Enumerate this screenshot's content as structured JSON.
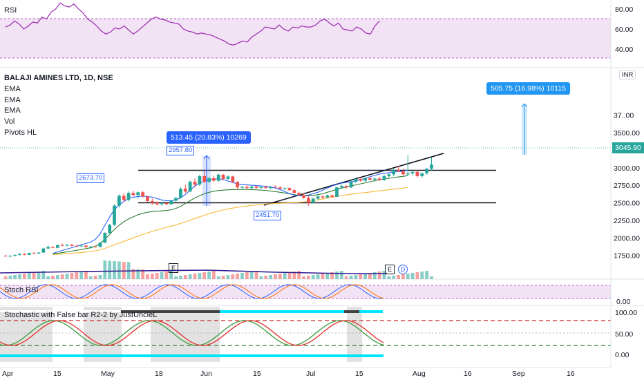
{
  "symbol_title": "BALAJI AMINES LTD, 1D, NSE",
  "indicators": [
    "EMA",
    "EMA",
    "EMA",
    "Vol",
    "Pivots HL"
  ],
  "currency_badge": "INR",
  "last_price": "3045.90",
  "colors": {
    "up": "#26a69a",
    "down": "#ef5350",
    "accent": "#2962ff",
    "ema_fast": "#2962ff",
    "ema_mid": "#2e7d32",
    "ema_slow": "#f7b731",
    "rsi_line": "#9c27b0",
    "rsi_band": "#e1bee7",
    "cyan": "#00e5ff"
  },
  "panes": {
    "rsi": {
      "label": "RSI",
      "ticks": [
        "80.00",
        "60.00",
        "40.00"
      ]
    },
    "stoch_rsi": {
      "label": "Stoch RSI",
      "ticks": [
        "0.00"
      ]
    },
    "stoch_fb": {
      "label": "Stochastic with False bar R2-2 by JustUncleL",
      "ticks": [
        "100.00",
        "50.00",
        "0.00"
      ]
    }
  },
  "callouts": {
    "measure1": "513.45 (20.83%) 10269",
    "measure2": "505.75 (16.98%) 10115"
  },
  "pivots": {
    "p1": "2673.70",
    "p2": "2957.80",
    "p3": "2451.70"
  },
  "badges": {
    "e1": "E",
    "e2": "E",
    "d": "D"
  },
  "chart_data": {
    "type": "candlestick",
    "title": "BALAJI AMINES LTD, 1D, NSE",
    "price_axis": {
      "ticks": [
        1750,
        2000,
        2250,
        2500,
        2750,
        3000,
        3250,
        3500,
        3750
      ],
      "tick_labels": [
        "1750.00",
        "2000.00",
        "2250.00",
        "2500.00",
        "2750.00",
        "3000.00",
        "3250.00",
        "3500.00",
        "37..00"
      ],
      "ylim": [
        1700,
        3780
      ]
    },
    "time_axis": {
      "labels": [
        "Apr",
        "15",
        "May",
        "18",
        "Jun",
        "15",
        "Jul",
        "15",
        "Aug",
        "16",
        "Sep",
        "16"
      ]
    },
    "last_close": 3045.9,
    "candles": [
      {
        "o": 1745,
        "h": 1760,
        "l": 1728,
        "c": 1738
      },
      {
        "o": 1738,
        "h": 1752,
        "l": 1725,
        "c": 1744
      },
      {
        "o": 1744,
        "h": 1765,
        "l": 1735,
        "c": 1756
      },
      {
        "o": 1756,
        "h": 1780,
        "l": 1748,
        "c": 1770
      },
      {
        "o": 1770,
        "h": 1778,
        "l": 1750,
        "c": 1757
      },
      {
        "o": 1757,
        "h": 1790,
        "l": 1752,
        "c": 1785
      },
      {
        "o": 1785,
        "h": 1800,
        "l": 1770,
        "c": 1778
      },
      {
        "o": 1778,
        "h": 1795,
        "l": 1768,
        "c": 1790
      },
      {
        "o": 1790,
        "h": 1860,
        "l": 1785,
        "c": 1848
      },
      {
        "o": 1848,
        "h": 1890,
        "l": 1840,
        "c": 1870
      },
      {
        "o": 1870,
        "h": 1880,
        "l": 1850,
        "c": 1858
      },
      {
        "o": 1858,
        "h": 1905,
        "l": 1850,
        "c": 1897
      },
      {
        "o": 1897,
        "h": 1918,
        "l": 1880,
        "c": 1890
      },
      {
        "o": 1890,
        "h": 1912,
        "l": 1876,
        "c": 1902
      },
      {
        "o": 1902,
        "h": 1910,
        "l": 1880,
        "c": 1885
      },
      {
        "o": 1885,
        "h": 1900,
        "l": 1870,
        "c": 1880
      },
      {
        "o": 1880,
        "h": 1895,
        "l": 1865,
        "c": 1890
      },
      {
        "o": 1890,
        "h": 1895,
        "l": 1860,
        "c": 1868
      },
      {
        "o": 1868,
        "h": 1885,
        "l": 1855,
        "c": 1875
      },
      {
        "o": 1875,
        "h": 1888,
        "l": 1862,
        "c": 1870
      },
      {
        "o": 1870,
        "h": 1940,
        "l": 1865,
        "c": 1930
      },
      {
        "o": 1930,
        "h": 2080,
        "l": 1925,
        "c": 2070
      },
      {
        "o": 2070,
        "h": 2200,
        "l": 2050,
        "c": 2185
      },
      {
        "o": 2185,
        "h": 2480,
        "l": 2170,
        "c": 2460
      },
      {
        "o": 2460,
        "h": 2620,
        "l": 2430,
        "c": 2600
      },
      {
        "o": 2600,
        "h": 2640,
        "l": 2510,
        "c": 2540
      },
      {
        "o": 2540,
        "h": 2660,
        "l": 2520,
        "c": 2640
      },
      {
        "o": 2640,
        "h": 2674,
        "l": 2590,
        "c": 2610
      },
      {
        "o": 2610,
        "h": 2660,
        "l": 2560,
        "c": 2650
      },
      {
        "o": 2650,
        "h": 2670,
        "l": 2570,
        "c": 2590
      },
      {
        "o": 2590,
        "h": 2600,
        "l": 2510,
        "c": 2525
      },
      {
        "o": 2525,
        "h": 2560,
        "l": 2470,
        "c": 2500
      },
      {
        "o": 2500,
        "h": 2520,
        "l": 2460,
        "c": 2480
      },
      {
        "o": 2480,
        "h": 2510,
        "l": 2460,
        "c": 2495
      },
      {
        "o": 2495,
        "h": 2520,
        "l": 2470,
        "c": 2478
      },
      {
        "o": 2478,
        "h": 2540,
        "l": 2470,
        "c": 2530
      },
      {
        "o": 2530,
        "h": 2580,
        "l": 2515,
        "c": 2570
      },
      {
        "o": 2570,
        "h": 2720,
        "l": 2560,
        "c": 2700
      },
      {
        "o": 2700,
        "h": 2760,
        "l": 2640,
        "c": 2660
      },
      {
        "o": 2660,
        "h": 2820,
        "l": 2650,
        "c": 2800
      },
      {
        "o": 2800,
        "h": 2850,
        "l": 2720,
        "c": 2760
      },
      {
        "o": 2760,
        "h": 2900,
        "l": 2740,
        "c": 2880
      },
      {
        "o": 2880,
        "h": 2958,
        "l": 2780,
        "c": 2800
      },
      {
        "o": 2800,
        "h": 2870,
        "l": 2780,
        "c": 2850
      },
      {
        "o": 2850,
        "h": 2890,
        "l": 2800,
        "c": 2815
      },
      {
        "o": 2815,
        "h": 2920,
        "l": 2800,
        "c": 2900
      },
      {
        "o": 2900,
        "h": 2910,
        "l": 2820,
        "c": 2840
      },
      {
        "o": 2840,
        "h": 2890,
        "l": 2825,
        "c": 2875
      },
      {
        "o": 2875,
        "h": 2885,
        "l": 2780,
        "c": 2795
      },
      {
        "o": 2795,
        "h": 2810,
        "l": 2700,
        "c": 2720
      },
      {
        "o": 2720,
        "h": 2740,
        "l": 2690,
        "c": 2725
      },
      {
        "o": 2725,
        "h": 2760,
        "l": 2700,
        "c": 2710
      },
      {
        "o": 2710,
        "h": 2740,
        "l": 2695,
        "c": 2730
      },
      {
        "o": 2730,
        "h": 2750,
        "l": 2705,
        "c": 2712
      },
      {
        "o": 2712,
        "h": 2735,
        "l": 2700,
        "c": 2725
      },
      {
        "o": 2725,
        "h": 2745,
        "l": 2705,
        "c": 2708
      },
      {
        "o": 2708,
        "h": 2740,
        "l": 2700,
        "c": 2728
      },
      {
        "o": 2728,
        "h": 2750,
        "l": 2715,
        "c": 2720
      },
      {
        "o": 2720,
        "h": 2740,
        "l": 2690,
        "c": 2700
      },
      {
        "o": 2700,
        "h": 2720,
        "l": 2680,
        "c": 2710
      },
      {
        "o": 2710,
        "h": 2725,
        "l": 2670,
        "c": 2680
      },
      {
        "o": 2680,
        "h": 2700,
        "l": 2630,
        "c": 2640
      },
      {
        "o": 2640,
        "h": 2660,
        "l": 2600,
        "c": 2610
      },
      {
        "o": 2610,
        "h": 2640,
        "l": 2560,
        "c": 2570
      },
      {
        "o": 2570,
        "h": 2600,
        "l": 2452,
        "c": 2500
      },
      {
        "o": 2500,
        "h": 2570,
        "l": 2490,
        "c": 2560
      },
      {
        "o": 2560,
        "h": 2610,
        "l": 2540,
        "c": 2590
      },
      {
        "o": 2590,
        "h": 2610,
        "l": 2560,
        "c": 2575
      },
      {
        "o": 2575,
        "h": 2620,
        "l": 2560,
        "c": 2605
      },
      {
        "o": 2605,
        "h": 2620,
        "l": 2570,
        "c": 2585
      },
      {
        "o": 2585,
        "h": 2730,
        "l": 2580,
        "c": 2720
      },
      {
        "o": 2720,
        "h": 2760,
        "l": 2700,
        "c": 2740
      },
      {
        "o": 2740,
        "h": 2750,
        "l": 2700,
        "c": 2720
      },
      {
        "o": 2720,
        "h": 2820,
        "l": 2710,
        "c": 2800
      },
      {
        "o": 2800,
        "h": 2860,
        "l": 2780,
        "c": 2840
      },
      {
        "o": 2840,
        "h": 2860,
        "l": 2800,
        "c": 2815
      },
      {
        "o": 2815,
        "h": 2860,
        "l": 2800,
        "c": 2850
      },
      {
        "o": 2850,
        "h": 2870,
        "l": 2820,
        "c": 2830
      },
      {
        "o": 2830,
        "h": 2860,
        "l": 2800,
        "c": 2845
      },
      {
        "o": 2845,
        "h": 2870,
        "l": 2810,
        "c": 2825
      },
      {
        "o": 2825,
        "h": 2900,
        "l": 2810,
        "c": 2880
      },
      {
        "o": 2880,
        "h": 2920,
        "l": 2860,
        "c": 2905
      },
      {
        "o": 2905,
        "h": 2990,
        "l": 2880,
        "c": 2970
      },
      {
        "o": 2970,
        "h": 3020,
        "l": 2940,
        "c": 2950
      },
      {
        "o": 2950,
        "h": 2985,
        "l": 2890,
        "c": 2905
      },
      {
        "o": 2905,
        "h": 3180,
        "l": 2880,
        "c": 2920
      },
      {
        "o": 2920,
        "h": 2960,
        "l": 2890,
        "c": 2940
      },
      {
        "o": 2940,
        "h": 2960,
        "l": 2860,
        "c": 2880
      },
      {
        "o": 2880,
        "h": 2930,
        "l": 2860,
        "c": 2920
      },
      {
        "o": 2920,
        "h": 3000,
        "l": 2900,
        "c": 2985
      },
      {
        "o": 2985,
        "h": 3150,
        "l": 2960,
        "c": 3046
      }
    ],
    "ema_fast": [
      1780,
      1800,
      1820,
      1840,
      1860,
      1880,
      1900,
      1920,
      1940,
      1980,
      2060,
      2180,
      2300,
      2400,
      2470,
      2520,
      2560,
      2580,
      2590,
      2595,
      2590,
      2580,
      2560,
      2540,
      2530,
      2530,
      2540,
      2570,
      2620,
      2680,
      2740,
      2780,
      2810,
      2830,
      2840,
      2840,
      2830,
      2810,
      2790,
      2770,
      2760,
      2755,
      2750,
      2745,
      2740,
      2735,
      2725,
      2710,
      2690,
      2660,
      2630,
      2610,
      2600,
      2600,
      2610,
      2630,
      2650,
      2680,
      2710,
      2740,
      2760,
      2780,
      2790,
      2800,
      2810,
      2830,
      2850,
      2870,
      2890,
      2910,
      2920,
      2930,
      2940,
      2945,
      2950,
      2965
    ],
    "ema_mid": [
      1770,
      1780,
      1790,
      1800,
      1810,
      1822,
      1834,
      1846,
      1858,
      1880,
      1920,
      1980,
      2050,
      2120,
      2180,
      2230,
      2270,
      2300,
      2330,
      2350,
      2365,
      2375,
      2380,
      2385,
      2390,
      2400,
      2420,
      2450,
      2490,
      2530,
      2570,
      2600,
      2630,
      2650,
      2665,
      2675,
      2680,
      2685,
      2688,
      2690,
      2690,
      2690,
      2688,
      2685,
      2680,
      2675,
      2668,
      2660,
      2650,
      2640,
      2628,
      2615,
      2605,
      2600,
      2600,
      2605,
      2615,
      2630,
      2650,
      2670,
      2690,
      2710,
      2725,
      2740,
      2755,
      2770,
      2785,
      2800,
      2815,
      2828,
      2840,
      2850,
      2860,
      2868,
      2876,
      2888
    ],
    "ema_slow": [
      1760,
      1765,
      1770,
      1775,
      1780,
      1786,
      1792,
      1798,
      1805,
      1815,
      1830,
      1850,
      1875,
      1900,
      1925,
      1950,
      1975,
      2000,
      2025,
      2048,
      2070,
      2092,
      2112,
      2132,
      2150,
      2168,
      2185,
      2205,
      2228,
      2252,
      2276,
      2300,
      2322,
      2344,
      2364,
      2382,
      2398,
      2412,
      2424,
      2436,
      2446,
      2455,
      2463,
      2470,
      2476,
      2482,
      2486,
      2490,
      2493,
      2496,
      2499,
      2502,
      2506,
      2512,
      2520,
      2530,
      2542,
      2555,
      2568,
      2580,
      2592,
      2603,
      2613,
      2622,
      2630,
      2638,
      2646,
      2654,
      2662,
      2670,
      2678,
      2686,
      2694,
      2702,
      2710,
      2722
    ],
    "horizontal_levels": [
      2957.8,
      2500
    ],
    "pivots_hl": [
      {
        "label": "2673.70",
        "value": 2673.7
      },
      {
        "label": "2957.80",
        "value": 2957.8
      },
      {
        "label": "2451.70",
        "value": 2451.7
      }
    ],
    "rsi": [
      62,
      64,
      68,
      65,
      60,
      63,
      67,
      66,
      72,
      70,
      77,
      80,
      86,
      83,
      82,
      85,
      80,
      76,
      70,
      67,
      63,
      58,
      55,
      57,
      61,
      60,
      63,
      59,
      55,
      58,
      62,
      66,
      70,
      72,
      70,
      69,
      67,
      66,
      65,
      60,
      58,
      57,
      55,
      56,
      55,
      54,
      52,
      50,
      48,
      45,
      44,
      46,
      48,
      47,
      52,
      55,
      58,
      62,
      61,
      60,
      64,
      60,
      58,
      62,
      61,
      63,
      62,
      62,
      64,
      68,
      70,
      66,
      63,
      66,
      60,
      59,
      58,
      62,
      60,
      56,
      55,
      63,
      68
    ],
    "rsi_band": [
      70,
      30
    ]
  }
}
